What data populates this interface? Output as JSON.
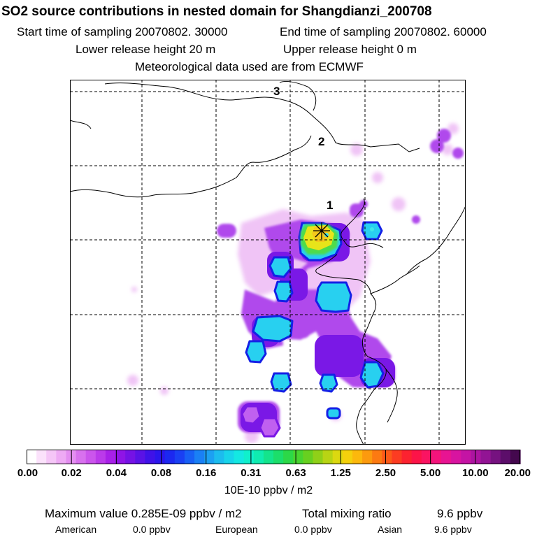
{
  "header": {
    "title": "SO2 source contributions in nested domain for Shangdianzi_200708",
    "start_label": "Start time of sampling 20070802. 30000",
    "end_label": "End time of sampling 20070802. 60000",
    "lower_label": "Lower release height   20 m",
    "upper_label": "Upper release height    0 m",
    "met_label": "Meteorological data used are from ECMWF"
  },
  "map": {
    "contour_labels": [
      "3",
      "2",
      "1"
    ],
    "station_marker": "asterisk-icon"
  },
  "colorbar": {
    "ticks": [
      "0.00",
      "0.02",
      "0.04",
      "0.08",
      "0.16",
      "0.31",
      "0.63",
      "1.25",
      "2.50",
      "5.00",
      "10.00",
      "20.00"
    ],
    "colors": [
      "#ffffff",
      "#fbe2fb",
      "#f5c6f7",
      "#eeaaf4",
      "#e48ef1",
      "#d871ee",
      "#cb55ec",
      "#bb3aea",
      "#a820e8",
      "#8f14e6",
      "#7512e5",
      "#5a12e6",
      "#3f12e8",
      "#2a16ec",
      "#1c28f0",
      "#1a40f3",
      "#1860f5",
      "#1a80f5",
      "#1ca0f2",
      "#1cbcee",
      "#18d4ea",
      "#14e8e2",
      "#10f0cc",
      "#10ecb0",
      "#14e48c",
      "#1cde6a",
      "#2cd848",
      "#48d430",
      "#68d020",
      "#90d018",
      "#b8d414",
      "#dcd810",
      "#f4d00c",
      "#fcb80c",
      "#fc9a0e",
      "#fc7a12",
      "#fc5a18",
      "#fc3c22",
      "#fc2230",
      "#fc1448",
      "#fa1462",
      "#f4147c",
      "#e81492",
      "#d814a0",
      "#c414a4",
      "#ac14a0",
      "#921494",
      "#761280",
      "#5c0e6a",
      "#44084e"
    ],
    "units": "10E-10 ppbv / m2"
  },
  "footer": {
    "max_label": "Maximum value  0.285E-09 ppbv / m2",
    "total_label": "Total mixing ratio",
    "total_value": "9.6 ppbv",
    "american_label": "American",
    "american_value": "0.0 ppbv",
    "european_label": "European",
    "european_value": "0.0 ppbv",
    "asian_label": "Asian",
    "asian_value": "9.6 ppbv"
  }
}
